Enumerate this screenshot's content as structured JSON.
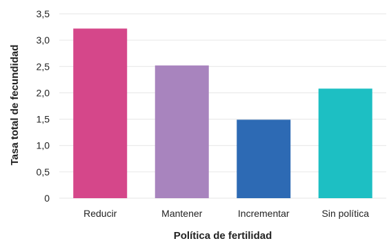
{
  "chart_data": {
    "type": "bar",
    "title": "",
    "xlabel": "Política de fertilidad",
    "ylabel": "Tasa total de fecundidad",
    "categories": [
      "Reducir",
      "Mantener",
      "Incrementar",
      "Sin política"
    ],
    "values": [
      3.22,
      2.52,
      1.49,
      2.08
    ],
    "colors": [
      "#d5478a",
      "#a884be",
      "#2d6ab4",
      "#1dbfc3"
    ],
    "ylim": [
      0,
      3.5
    ],
    "yticks": [
      "0",
      "0,5",
      "1,0",
      "1,5",
      "2,0",
      "2,5",
      "3,0",
      "3,5"
    ],
    "grid": true,
    "grid_color": "#e6e6e6",
    "legend": "none"
  }
}
